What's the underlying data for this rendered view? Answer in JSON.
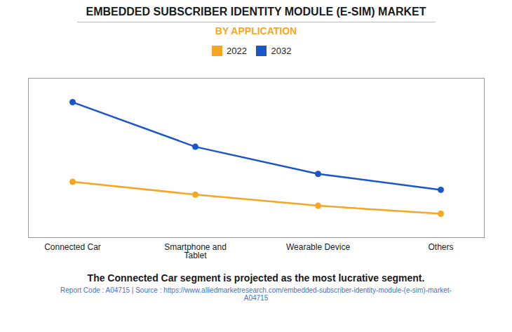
{
  "chart_data": {
    "type": "line",
    "title": "EMBEDDED SUBSCRIBER IDENTITY MODULE (E-SIM) MARKET",
    "subtitle": "BY APPLICATION",
    "annotation": "The Connected Car segment is projected as the most lucrative segment.",
    "source": "Report Code : A04715  |  Source : https://www.alliedmarketresearch.com/embedded-subscriber-identity-module-(e-sim)-market-\nA04715",
    "categories": [
      "Connected Car",
      "Smartphone and\nTablet",
      "Wearable Device",
      "Others"
    ],
    "series": [
      {
        "name": "2022",
        "color": "#F5A623",
        "marker": "circle",
        "values": [
          5.0,
          4.2,
          3.5,
          3.0
        ]
      },
      {
        "name": "2032",
        "color": "#1B56C8",
        "marker": "circle",
        "values": [
          10.0,
          7.2,
          5.5,
          4.5
        ]
      }
    ],
    "ylim": [
      1.5,
      11.5
    ],
    "yticks": [],
    "grid": false,
    "legend": "top",
    "tick_labels": "x"
  }
}
